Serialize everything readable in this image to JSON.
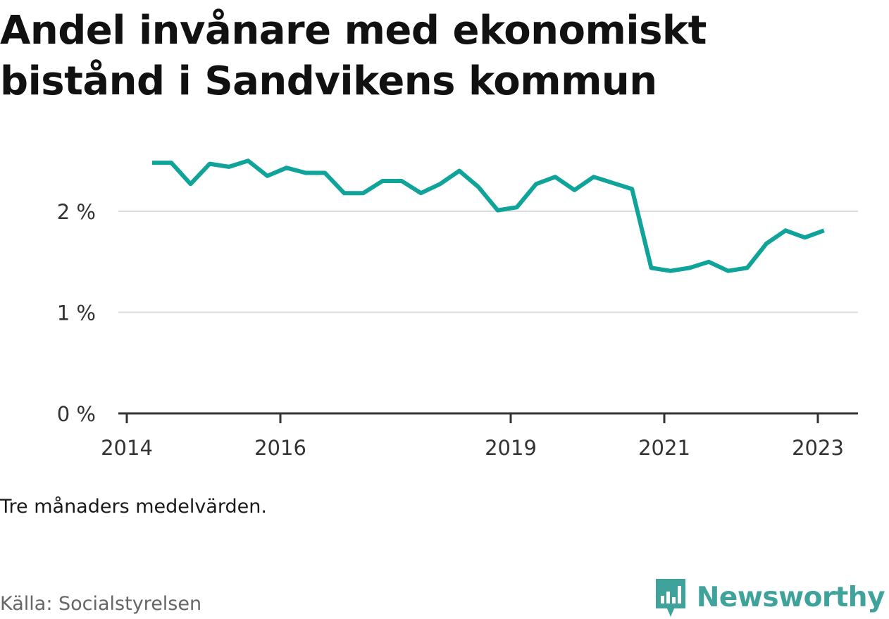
{
  "title": "Andel invånare med ekonomiskt bistånd i Sandvikens kommun",
  "note": "Tre månaders medelvärden.",
  "source": "Källa: Socialstyrelsen",
  "brand": {
    "name": "Newsworthy",
    "icon": "newsworthy-logo-icon",
    "color": "#3fa39c"
  },
  "chart_data": {
    "type": "line",
    "color": "#0fa39a",
    "grid": true,
    "ylim": [
      0,
      3
    ],
    "y_ticks": [
      {
        "value": 0,
        "label": "0 %"
      },
      {
        "value": 1,
        "label": "1 %"
      },
      {
        "value": 2,
        "label": "2 %"
      }
    ],
    "x_ticks": [
      {
        "value": 2014.0,
        "label": "2014"
      },
      {
        "value": 2016.0,
        "label": "2016"
      },
      {
        "value": 2019.0,
        "label": "2019"
      },
      {
        "value": 2021.0,
        "label": "2021"
      },
      {
        "value": 2023.0,
        "label": "2023"
      }
    ],
    "series": [
      {
        "x": [
          2014.33,
          2014.58,
          2014.83,
          2015.08,
          2015.33,
          2015.58,
          2015.83,
          2016.08,
          2016.33,
          2016.58,
          2016.83,
          2017.08,
          2017.33,
          2017.58,
          2017.83,
          2018.08,
          2018.33,
          2018.58,
          2018.83,
          2019.08,
          2019.33,
          2019.58,
          2019.83,
          2020.08,
          2020.33,
          2020.58,
          2020.83,
          2021.08,
          2021.33,
          2021.58,
          2021.83,
          2022.08,
          2022.33,
          2022.58,
          2022.83,
          2023.08
        ],
        "values": [
          2.48,
          2.48,
          2.27,
          2.47,
          2.44,
          2.5,
          2.35,
          2.43,
          2.38,
          2.38,
          2.18,
          2.18,
          2.3,
          2.3,
          2.18,
          2.27,
          2.4,
          2.24,
          2.01,
          2.04,
          2.27,
          2.34,
          2.21,
          2.34,
          2.28,
          2.22,
          1.44,
          1.41,
          1.44,
          1.5,
          1.41,
          1.44,
          1.68,
          1.81,
          1.74,
          1.81
        ]
      }
    ]
  }
}
